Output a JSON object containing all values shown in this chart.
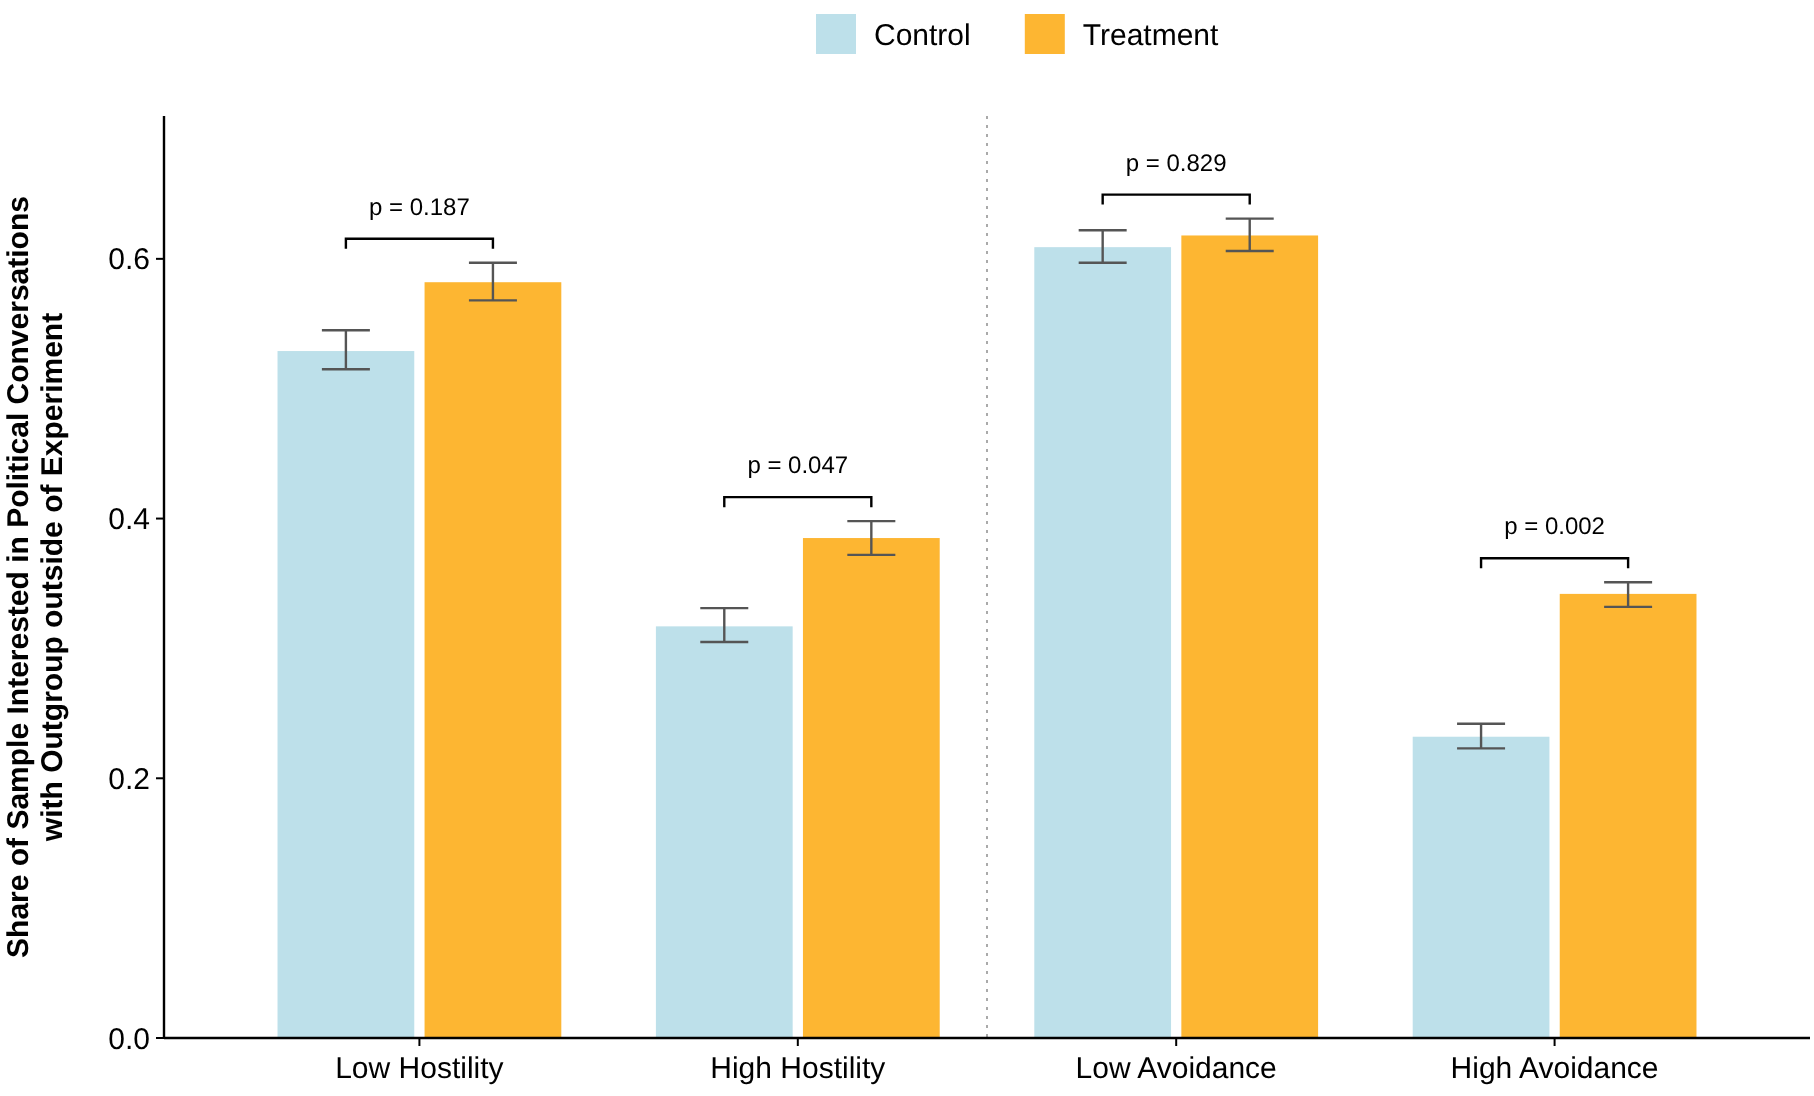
{
  "chart_data": {
    "type": "bar",
    "ylabel": "Share of Sample Interested in Political Conversations\nwith Outgroup outside of Experiment",
    "categories": [
      "Low Hostility",
      "High Hostility",
      "Low Avoidance",
      "High Avoidance"
    ],
    "series": [
      {
        "name": "Control",
        "color": "#bde0ea",
        "values": [
          0.529,
          0.317,
          0.609,
          0.232
        ],
        "errors": [
          [
            0.515,
            0.545
          ],
          [
            0.305,
            0.331
          ],
          [
            0.597,
            0.622
          ],
          [
            0.223,
            0.242
          ]
        ]
      },
      {
        "name": "Treatment",
        "color": "#fdb632",
        "values": [
          0.582,
          0.385,
          0.618,
          0.342
        ],
        "errors": [
          [
            0.568,
            0.597
          ],
          [
            0.372,
            0.398
          ],
          [
            0.606,
            0.631
          ],
          [
            0.332,
            0.351
          ]
        ]
      }
    ],
    "ylim": [
      0,
      0.71
    ],
    "yticks": [
      {
        "value": 0,
        "label": "0.0"
      },
      {
        "value": 0.2,
        "label": "0.2"
      },
      {
        "value": 0.4,
        "label": "0.4"
      },
      {
        "value": 0.6,
        "label": "0.6"
      }
    ],
    "grid": false,
    "legend": "top",
    "annotations": [
      "p = 0.187",
      "p = 0.047",
      "p = 0.829",
      "p = 0.002"
    ]
  }
}
